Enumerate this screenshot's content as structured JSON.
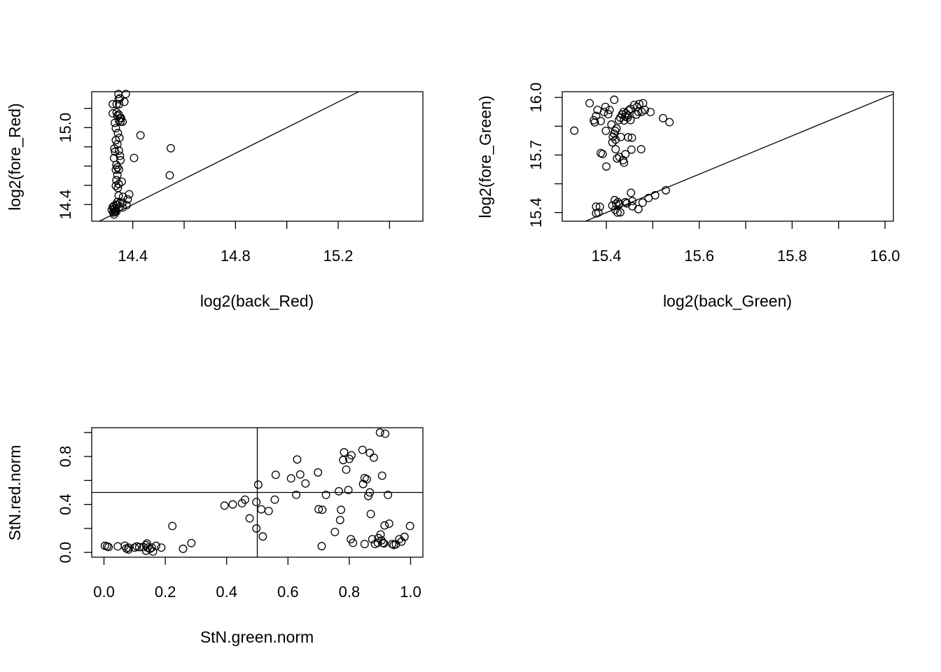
{
  "chart_data": [
    {
      "type": "scatter",
      "xlabel": "log2(back_Red)",
      "ylabel": "log2(fore_Red)",
      "xlim": [
        14.24,
        15.53
      ],
      "ylim": [
        14.27,
        15.28
      ],
      "xticks": [
        14.4,
        14.6,
        14.8,
        15.0,
        15.2,
        15.4
      ],
      "xtick_labels": [
        "14.4",
        "",
        "14.8",
        "",
        "15.2",
        ""
      ],
      "yticks": [
        14.4,
        14.55,
        14.7,
        14.85,
        15.0,
        15.15
      ],
      "ytick_labels": [
        "14.4",
        "",
        "",
        "",
        "15.0",
        ""
      ],
      "reference_line": "y = x",
      "points": [
        [
          14.344,
          15.262
        ],
        [
          14.373,
          15.262
        ],
        [
          14.35,
          15.23
        ],
        [
          14.345,
          15.221
        ],
        [
          14.367,
          15.201
        ],
        [
          14.322,
          15.183
        ],
        [
          14.337,
          15.183
        ],
        [
          14.347,
          15.183
        ],
        [
          14.337,
          15.118
        ],
        [
          14.322,
          15.111
        ],
        [
          14.345,
          15.102
        ],
        [
          14.34,
          15.093
        ],
        [
          14.35,
          15.074
        ],
        [
          14.354,
          15.074
        ],
        [
          14.346,
          15.055
        ],
        [
          14.352,
          15.046
        ],
        [
          14.33,
          15.037
        ],
        [
          14.36,
          15.046
        ],
        [
          14.43,
          14.94
        ],
        [
          14.334,
          14.995
        ],
        [
          14.342,
          14.958
        ],
        [
          14.348,
          14.92
        ],
        [
          14.334,
          14.902
        ],
        [
          14.34,
          14.87
        ],
        [
          14.346,
          14.82
        ],
        [
          14.328,
          14.836
        ],
        [
          14.331,
          14.812
        ],
        [
          14.548,
          14.839
        ],
        [
          14.35,
          14.78
        ],
        [
          14.405,
          14.763
        ],
        [
          14.327,
          14.763
        ],
        [
          14.352,
          14.745
        ],
        [
          14.336,
          14.71
        ],
        [
          14.34,
          14.69
        ],
        [
          14.346,
          14.674
        ],
        [
          14.334,
          14.672
        ],
        [
          14.544,
          14.628
        ],
        [
          14.34,
          14.63
        ],
        [
          14.336,
          14.59
        ],
        [
          14.357,
          14.578
        ],
        [
          14.345,
          14.56
        ],
        [
          14.342,
          14.529
        ],
        [
          14.334,
          14.546
        ],
        [
          14.386,
          14.48
        ],
        [
          14.345,
          14.47
        ],
        [
          14.362,
          14.46
        ],
        [
          14.38,
          14.44
        ],
        [
          14.34,
          14.42
        ],
        [
          14.35,
          14.41
        ],
        [
          14.36,
          14.414
        ],
        [
          14.334,
          14.4
        ],
        [
          14.327,
          14.39
        ],
        [
          14.34,
          14.395
        ],
        [
          14.376,
          14.395
        ],
        [
          14.322,
          14.38
        ],
        [
          14.33,
          14.37
        ],
        [
          14.345,
          14.376
        ],
        [
          14.36,
          14.377
        ],
        [
          14.318,
          14.358
        ],
        [
          14.326,
          14.36
        ],
        [
          14.332,
          14.35
        ],
        [
          14.327,
          14.322
        ],
        [
          14.33,
          14.34
        ],
        [
          14.336,
          14.345
        ],
        [
          14.324,
          14.338
        ]
      ]
    },
    {
      "type": "scatter",
      "xlabel": "log2(back_Green)",
      "ylabel": "log2(fore_Green)",
      "xlim": [
        15.305,
        16.018
      ],
      "ylim": [
        15.355,
        16.03
      ],
      "xticks": [
        15.4,
        15.5,
        15.6,
        15.7,
        15.8,
        15.9,
        16.0
      ],
      "xtick_labels": [
        "15.4",
        "",
        "15.6",
        "",
        "15.8",
        "",
        "16.0"
      ],
      "yticks": [
        15.4,
        15.55,
        15.7,
        15.85,
        16.0
      ],
      "ytick_labels": [
        "15.4",
        "",
        "15.7",
        "",
        "16.0"
      ],
      "reference_line": "y = x",
      "points": [
        [
          15.417,
          15.988
        ],
        [
          15.364,
          15.97
        ],
        [
          15.398,
          15.951
        ],
        [
          15.381,
          15.935
        ],
        [
          15.407,
          15.935
        ],
        [
          15.404,
          15.913
        ],
        [
          15.395,
          15.924
        ],
        [
          15.378,
          15.904
        ],
        [
          15.373,
          15.881
        ],
        [
          15.388,
          15.877
        ],
        [
          15.375,
          15.87
        ],
        [
          15.331,
          15.827
        ],
        [
          15.399,
          15.826
        ],
        [
          15.419,
          15.826
        ],
        [
          15.417,
          15.811
        ],
        [
          15.43,
          15.895
        ],
        [
          15.434,
          15.911
        ],
        [
          15.442,
          15.917
        ],
        [
          15.437,
          15.924
        ],
        [
          15.448,
          15.932
        ],
        [
          15.452,
          15.941
        ],
        [
          15.46,
          15.961
        ],
        [
          15.471,
          15.966
        ],
        [
          15.479,
          15.97
        ],
        [
          15.466,
          15.951
        ],
        [
          15.483,
          15.935
        ],
        [
          15.495,
          15.924
        ],
        [
          15.476,
          15.925
        ],
        [
          15.469,
          15.925
        ],
        [
          15.465,
          15.911
        ],
        [
          15.446,
          15.906
        ],
        [
          15.441,
          15.9
        ],
        [
          15.446,
          15.895
        ],
        [
          15.427,
          15.882
        ],
        [
          15.438,
          15.88
        ],
        [
          15.452,
          15.882
        ],
        [
          15.522,
          15.892
        ],
        [
          15.536,
          15.871
        ],
        [
          15.411,
          15.859
        ],
        [
          15.422,
          15.838
        ],
        [
          15.414,
          15.795
        ],
        [
          15.431,
          15.794
        ],
        [
          15.447,
          15.792
        ],
        [
          15.455,
          15.79
        ],
        [
          15.42,
          15.78
        ],
        [
          15.413,
          15.766
        ],
        [
          15.454,
          15.728
        ],
        [
          15.475,
          15.73
        ],
        [
          15.42,
          15.73
        ],
        [
          15.388,
          15.71
        ],
        [
          15.392,
          15.705
        ],
        [
          15.441,
          15.704
        ],
        [
          15.428,
          15.69
        ],
        [
          15.423,
          15.682
        ],
        [
          15.436,
          15.673
        ],
        [
          15.438,
          15.66
        ],
        [
          15.4,
          15.64
        ],
        [
          15.528,
          15.516
        ],
        [
          15.453,
          15.503
        ],
        [
          15.505,
          15.49
        ],
        [
          15.491,
          15.476
        ],
        [
          15.456,
          15.46
        ],
        [
          15.418,
          15.465
        ],
        [
          15.425,
          15.454
        ],
        [
          15.441,
          15.454
        ],
        [
          15.478,
          15.452
        ],
        [
          15.421,
          15.445
        ],
        [
          15.413,
          15.437
        ],
        [
          15.428,
          15.443
        ],
        [
          15.444,
          15.448
        ],
        [
          15.456,
          15.433
        ],
        [
          15.378,
          15.431
        ],
        [
          15.386,
          15.43
        ],
        [
          15.469,
          15.418
        ],
        [
          15.419,
          15.415
        ],
        [
          15.383,
          15.4
        ],
        [
          15.424,
          15.4
        ],
        [
          15.43,
          15.401
        ],
        [
          15.378,
          15.396
        ]
      ]
    },
    {
      "type": "scatter",
      "xlabel": "StN.green.norm",
      "ylabel": "StN.red.norm",
      "xlim": [
        -0.04,
        1.04
      ],
      "ylim": [
        -0.04,
        1.04
      ],
      "xticks": [
        0.0,
        0.2,
        0.4,
        0.6,
        0.8,
        1.0
      ],
      "xtick_labels": [
        "0.0",
        "0.2",
        "0.4",
        "0.6",
        "0.8",
        "1.0"
      ],
      "yticks": [
        0.0,
        0.2,
        0.4,
        0.6,
        0.8,
        1.0
      ],
      "ytick_labels": [
        "0.0",
        "",
        "0.4",
        "",
        "0.8",
        ""
      ],
      "reference_lines": {
        "vertical_x": 0.5,
        "horizontal_y": 0.5
      },
      "points": [
        [
          0.003,
          0.055
        ],
        [
          0.01,
          0.05
        ],
        [
          0.015,
          0.045
        ],
        [
          0.045,
          0.05
        ],
        [
          0.068,
          0.056
        ],
        [
          0.073,
          0.032
        ],
        [
          0.08,
          0.024
        ],
        [
          0.08,
          0.04
        ],
        [
          0.1,
          0.04
        ],
        [
          0.107,
          0.05
        ],
        [
          0.115,
          0.044
        ],
        [
          0.128,
          0.045
        ],
        [
          0.137,
          0.06
        ],
        [
          0.14,
          0.074
        ],
        [
          0.142,
          0.04
        ],
        [
          0.15,
          0.03
        ],
        [
          0.137,
          0.014
        ],
        [
          0.156,
          0.04
        ],
        [
          0.16,
          0.007
        ],
        [
          0.17,
          0.055
        ],
        [
          0.187,
          0.04
        ],
        [
          0.223,
          0.22
        ],
        [
          0.258,
          0.03
        ],
        [
          0.285,
          0.078
        ],
        [
          0.393,
          0.39
        ],
        [
          0.42,
          0.4
        ],
        [
          0.45,
          0.41
        ],
        [
          0.46,
          0.44
        ],
        [
          0.475,
          0.284
        ],
        [
          0.497,
          0.42
        ],
        [
          0.503,
          0.565
        ],
        [
          0.497,
          0.2
        ],
        [
          0.513,
          0.359
        ],
        [
          0.518,
          0.133
        ],
        [
          0.537,
          0.345
        ],
        [
          0.557,
          0.44
        ],
        [
          0.56,
          0.647
        ],
        [
          0.61,
          0.617
        ],
        [
          0.627,
          0.48
        ],
        [
          0.63,
          0.775
        ],
        [
          0.64,
          0.65
        ],
        [
          0.657,
          0.575
        ],
        [
          0.698,
          0.667
        ],
        [
          0.7,
          0.36
        ],
        [
          0.712,
          0.355
        ],
        [
          0.71,
          0.052
        ],
        [
          0.724,
          0.48
        ],
        [
          0.753,
          0.17
        ],
        [
          0.766,
          0.51
        ],
        [
          0.77,
          0.27
        ],
        [
          0.773,
          0.355
        ],
        [
          0.78,
          0.77
        ],
        [
          0.783,
          0.835
        ],
        [
          0.79,
          0.69
        ],
        [
          0.797,
          0.52
        ],
        [
          0.8,
          0.78
        ],
        [
          0.807,
          0.81
        ],
        [
          0.805,
          0.11
        ],
        [
          0.812,
          0.08
        ],
        [
          0.843,
          0.855
        ],
        [
          0.845,
          0.57
        ],
        [
          0.85,
          0.62
        ],
        [
          0.85,
          0.07
        ],
        [
          0.857,
          0.61
        ],
        [
          0.862,
          0.47
        ],
        [
          0.867,
          0.5
        ],
        [
          0.867,
          0.83
        ],
        [
          0.87,
          0.32
        ],
        [
          0.875,
          0.11
        ],
        [
          0.88,
          0.79
        ],
        [
          0.884,
          0.07
        ],
        [
          0.893,
          0.08
        ],
        [
          0.895,
          0.12
        ],
        [
          0.9,
          1.0
        ],
        [
          0.902,
          0.15
        ],
        [
          0.905,
          0.1
        ],
        [
          0.907,
          0.64
        ],
        [
          0.91,
          0.08
        ],
        [
          0.913,
          0.075
        ],
        [
          0.915,
          0.225
        ],
        [
          0.917,
          0.99
        ],
        [
          0.926,
          0.48
        ],
        [
          0.93,
          0.24
        ],
        [
          0.94,
          0.07
        ],
        [
          0.945,
          0.062
        ],
        [
          0.952,
          0.068
        ],
        [
          0.963,
          0.11
        ],
        [
          0.97,
          0.09
        ],
        [
          0.98,
          0.13
        ],
        [
          0.998,
          0.22
        ]
      ]
    }
  ]
}
